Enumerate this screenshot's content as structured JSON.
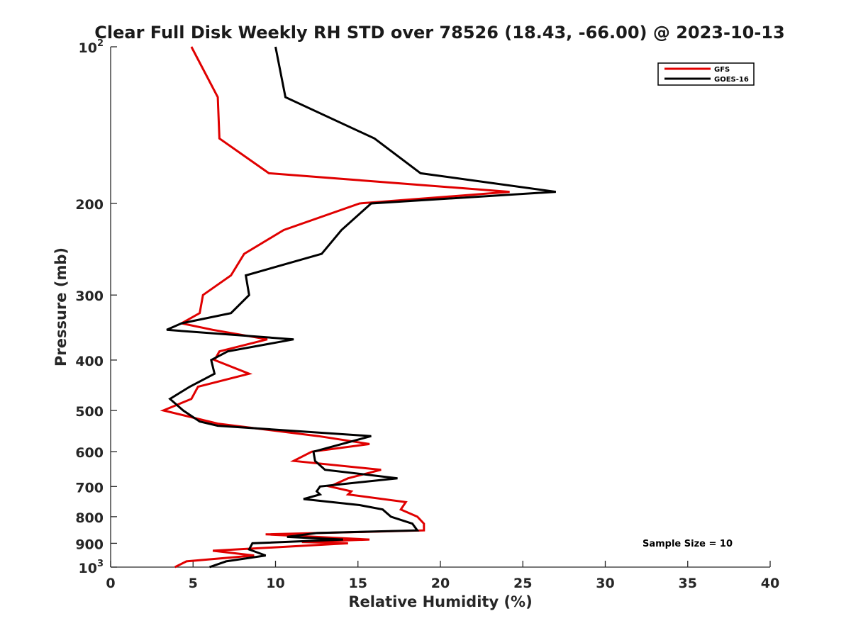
{
  "chart_data": {
    "type": "line",
    "title": "Clear Full Disk Weekly RH STD over 78526 (18.43, -66.00) @ 2023-10-13",
    "xlabel": "Relative Humidity (%)",
    "ylabel": "Pressure (mb)",
    "xlim": [
      0,
      40
    ],
    "ylim": [
      100,
      1000
    ],
    "y_scale": "log",
    "y_reversed": true,
    "x_ticks": [
      0,
      5,
      10,
      15,
      20,
      25,
      30,
      35,
      40
    ],
    "y_ticks": [
      {
        "value": 100,
        "base": "10",
        "exp": "2"
      },
      {
        "value": 200,
        "label": "200"
      },
      {
        "value": 300,
        "label": "300"
      },
      {
        "value": 400,
        "label": "400"
      },
      {
        "value": 500,
        "label": "500"
      },
      {
        "value": 600,
        "label": "600"
      },
      {
        "value": 700,
        "label": "700"
      },
      {
        "value": 800,
        "label": "800"
      },
      {
        "value": 900,
        "label": "900"
      },
      {
        "value": 1000,
        "base": "10",
        "exp": "3"
      }
    ],
    "grid": false,
    "legend_position": "top-right",
    "series": [
      {
        "name": "GFS",
        "color": "#e00000",
        "points": [
          [
            4.9,
            100
          ],
          [
            6.5,
            125
          ],
          [
            6.6,
            150
          ],
          [
            9.6,
            175
          ],
          [
            24.2,
            190
          ],
          [
            15.1,
            200
          ],
          [
            10.5,
            225
          ],
          [
            8.1,
            250
          ],
          [
            7.3,
            275
          ],
          [
            5.6,
            300
          ],
          [
            5.4,
            325
          ],
          [
            4.3,
            340
          ],
          [
            6.2,
            350
          ],
          [
            9.5,
            365
          ],
          [
            6.6,
            385
          ],
          [
            6.3,
            400
          ],
          [
            8.4,
            425
          ],
          [
            5.3,
            450
          ],
          [
            4.9,
            475
          ],
          [
            3.2,
            500
          ],
          [
            6.5,
            530
          ],
          [
            12.6,
            560
          ],
          [
            15.7,
            580
          ],
          [
            12.2,
            600
          ],
          [
            11.1,
            625
          ],
          [
            16.4,
            650
          ],
          [
            14.4,
            675
          ],
          [
            13.3,
            700
          ],
          [
            14.6,
            715
          ],
          [
            14.4,
            725
          ],
          [
            17.9,
            750
          ],
          [
            17.6,
            775
          ],
          [
            18.6,
            800
          ],
          [
            19.0,
            825
          ],
          [
            19.0,
            850
          ],
          [
            9.4,
            865
          ],
          [
            15.7,
            885
          ],
          [
            11.6,
            895
          ],
          [
            14.4,
            900
          ],
          [
            6.2,
            930
          ],
          [
            8.7,
            950
          ],
          [
            4.6,
            975
          ],
          [
            3.9,
            1000
          ]
        ]
      },
      {
        "name": "GOES-16",
        "color": "#000000",
        "points": [
          [
            10.0,
            100
          ],
          [
            10.6,
            125
          ],
          [
            16.0,
            150
          ],
          [
            18.8,
            175
          ],
          [
            27.0,
            190
          ],
          [
            15.8,
            200
          ],
          [
            14.0,
            225
          ],
          [
            12.8,
            250
          ],
          [
            8.2,
            275
          ],
          [
            8.4,
            300
          ],
          [
            7.3,
            325
          ],
          [
            4.3,
            340
          ],
          [
            3.4,
            350
          ],
          [
            11.1,
            365
          ],
          [
            7.1,
            385
          ],
          [
            6.1,
            400
          ],
          [
            6.3,
            425
          ],
          [
            4.8,
            450
          ],
          [
            3.6,
            475
          ],
          [
            4.4,
            500
          ],
          [
            5.4,
            525
          ],
          [
            6.5,
            535
          ],
          [
            15.8,
            560
          ],
          [
            12.3,
            600
          ],
          [
            12.4,
            625
          ],
          [
            13.0,
            650
          ],
          [
            17.4,
            675
          ],
          [
            12.7,
            700
          ],
          [
            12.5,
            715
          ],
          [
            12.7,
            725
          ],
          [
            11.7,
            740
          ],
          [
            15.1,
            760
          ],
          [
            16.5,
            775
          ],
          [
            17.0,
            800
          ],
          [
            18.3,
            825
          ],
          [
            18.6,
            850
          ],
          [
            12.5,
            860
          ],
          [
            10.7,
            875
          ],
          [
            14.1,
            885
          ],
          [
            8.6,
            900
          ],
          [
            8.4,
            925
          ],
          [
            9.4,
            950
          ],
          [
            7.0,
            975
          ],
          [
            6.0,
            1000
          ]
        ]
      }
    ],
    "annotations": [
      {
        "text": "Sample Size = 10",
        "position": "bottom-right"
      }
    ]
  }
}
